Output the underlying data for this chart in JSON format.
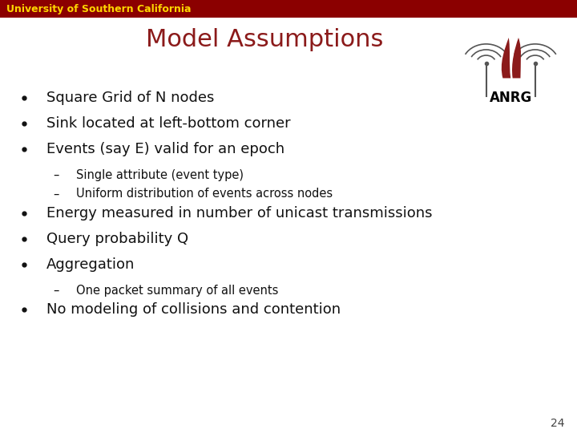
{
  "title": "Model Assumptions",
  "title_color": "#8B1A1A",
  "title_fontsize": 22,
  "header_bar_color": "#8B0000",
  "header_text": "University of Southern California",
  "header_text_color": "#FFD700",
  "header_fontsize": 9,
  "background_color": "#FFFFFF",
  "slide_number": "24",
  "bullet_color": "#111111",
  "bullet_fontsize": 13,
  "sub_bullet_fontsize": 10.5,
  "bullets": [
    {
      "level": 0,
      "text": "Square Grid of N nodes"
    },
    {
      "level": 0,
      "text": "Sink located at left-bottom corner"
    },
    {
      "level": 0,
      "text": "Events (say E) valid for an epoch"
    },
    {
      "level": 1,
      "text": "Single attribute (event type)"
    },
    {
      "level": 1,
      "text": "Uniform distribution of events across nodes"
    },
    {
      "level": 0,
      "text": "Energy measured in number of unicast transmissions"
    },
    {
      "level": 0,
      "text": "Query probability Q"
    },
    {
      "level": 0,
      "text": "Aggregation"
    },
    {
      "level": 1,
      "text": "One packet summary of all events"
    },
    {
      "level": 0,
      "text": "No modeling of collisions and contention"
    }
  ]
}
